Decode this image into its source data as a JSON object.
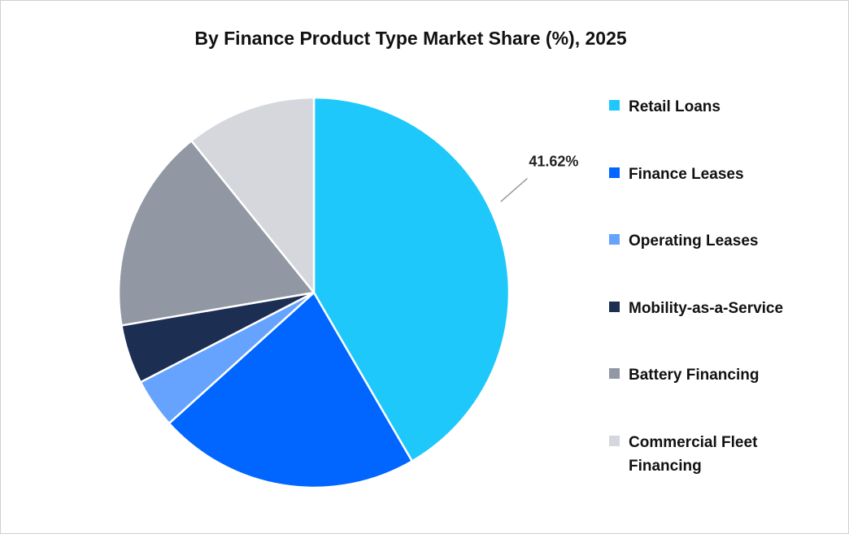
{
  "chart_data": {
    "type": "pie",
    "title": "By Finance Product Type Market Share (%), 2025",
    "categories": [
      "Retail Loans",
      "Finance Leases",
      "Operating Leases",
      "Mobility-as-a-Service",
      "Battery Financing",
      "Commercial Fleet Financing"
    ],
    "values": [
      41.62,
      21.7,
      4.1,
      4.9,
      16.9,
      10.8
    ],
    "value_labels": [
      "41.62%",
      null,
      null,
      null,
      null,
      null
    ],
    "colors": [
      "#1ec8fa",
      "#0066ff",
      "#66a3ff",
      "#1c2e52",
      "#9197a3",
      "#d5d7dc"
    ],
    "legend": "right"
  }
}
